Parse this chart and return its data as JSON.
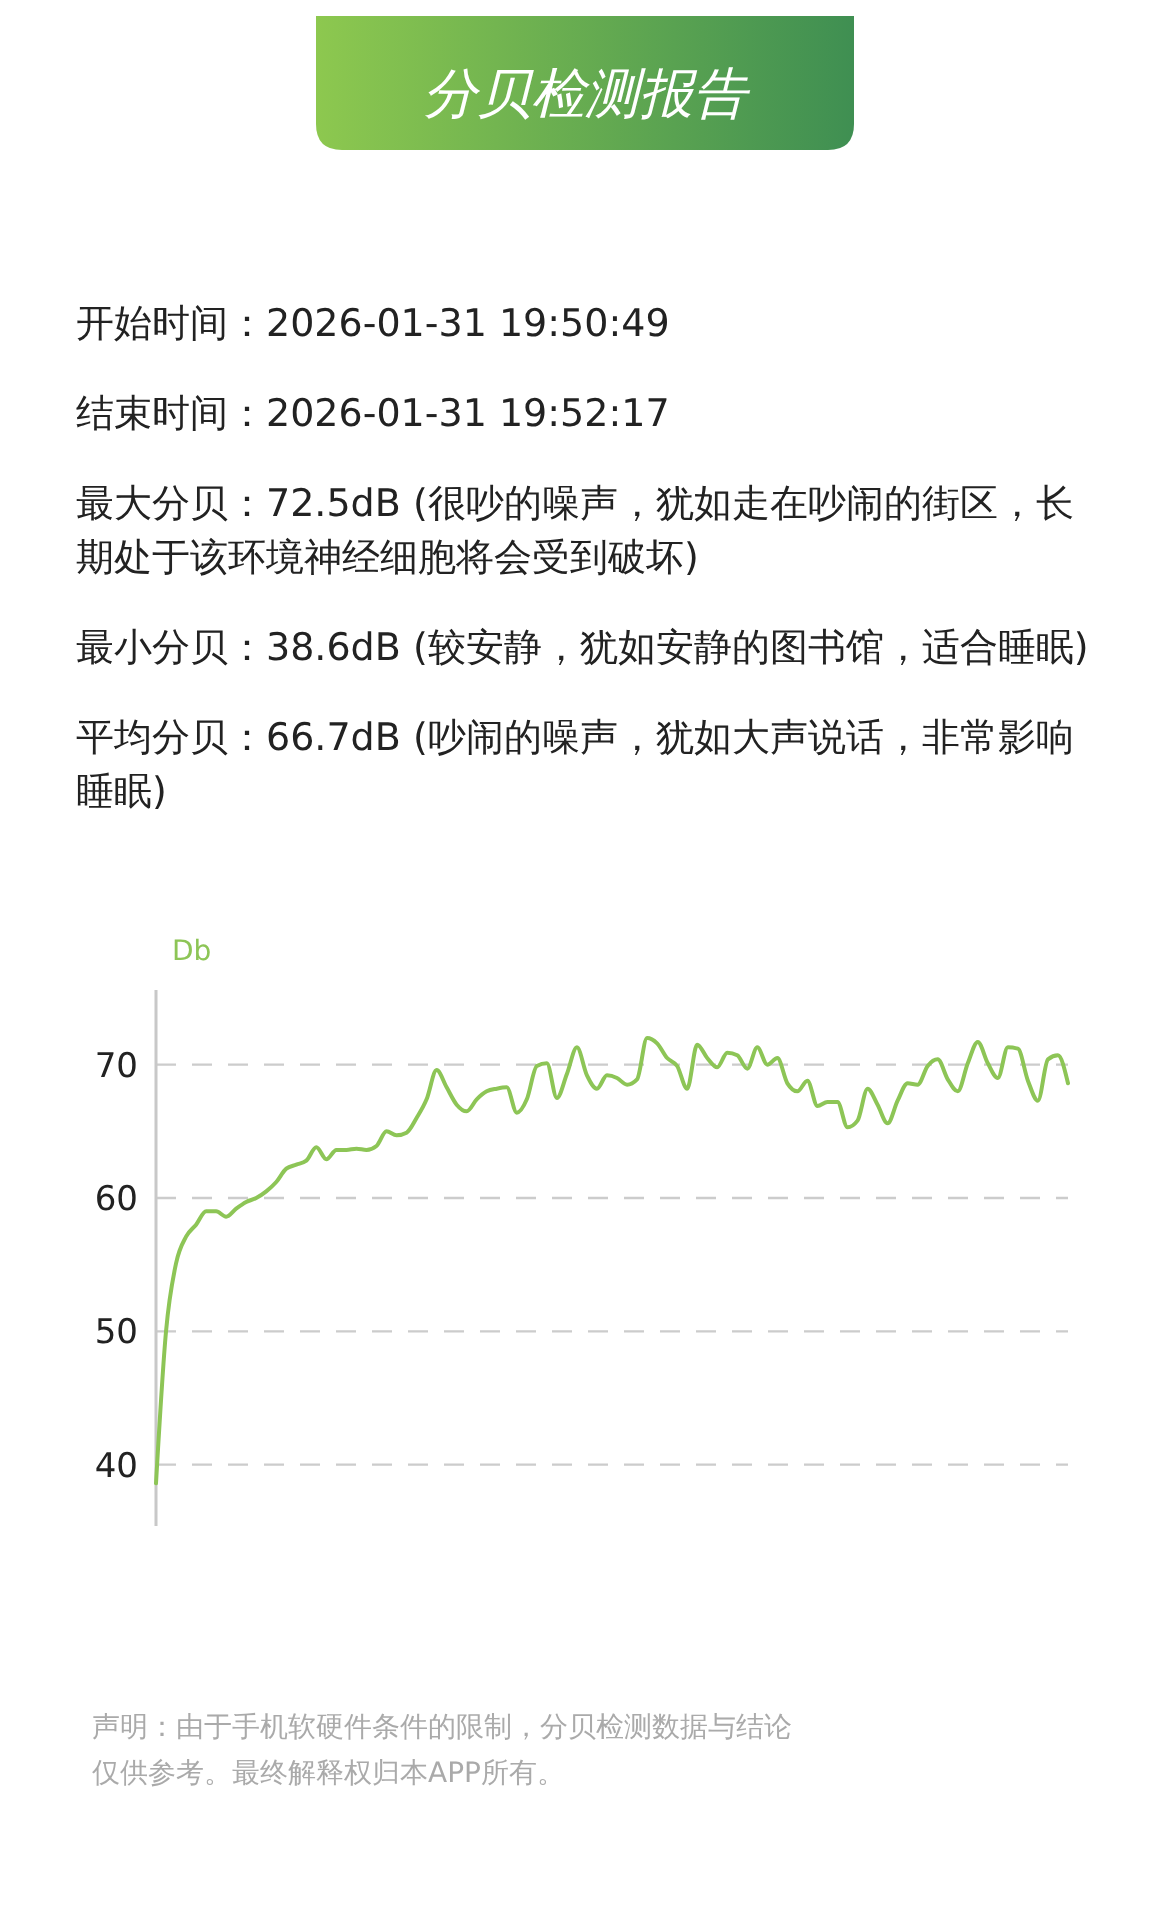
{
  "chart_data": {
    "type": "line",
    "title": "分贝检测报告",
    "ylabel": "Db",
    "annotations": [
      "开始时间：2026-01-31 19:50:49",
      "结束时间：2026-01-31 19:52:17",
      "最大分贝：72.5dB (很吵的噪声，犹如走在吵闹的街区，长期处于该环境神经细胞将会受到破坏)",
      "最小分贝：38.6dB (较安静，犹如安静的图书馆，适合睡眠)",
      "平均分贝：66.7dB (吵闹的噪声，犹如大声说话，非常影响睡眠)",
      "声明：由于手机软硬件条件的限制，分贝检测数据与结论仅供参考。最终解释权归本APP所有。"
    ],
    "categories": [
      null,
      null,
      null,
      null,
      null,
      null,
      null,
      null,
      null,
      null,
      null,
      null,
      null,
      null,
      null,
      null,
      null,
      null,
      null,
      null,
      null,
      null,
      null,
      null,
      null,
      null,
      null,
      null,
      null,
      null,
      null,
      null,
      null,
      null,
      null,
      null,
      null,
      null,
      null,
      null,
      null,
      null,
      null,
      null,
      null,
      null,
      null,
      null,
      null,
      null,
      null,
      null,
      null,
      null,
      null,
      null,
      null,
      null,
      null,
      null,
      null,
      null,
      null,
      null,
      null,
      null,
      null,
      null,
      null,
      null,
      null,
      null,
      null,
      null,
      null,
      null,
      null,
      null,
      null,
      null,
      null,
      null,
      null,
      null,
      null,
      null,
      null,
      null,
      null,
      null,
      null,
      null
    ],
    "series": [
      {
        "color": "#8dc556",
        "values": [
          38.6,
          50,
          55.1,
          57.1,
          58.0,
          59.0,
          59.0,
          58.6,
          59.2,
          59.7,
          60.0,
          60.5,
          61.2,
          62.2,
          62.5,
          62.8,
          63.8,
          62.9,
          63.6,
          63.6,
          63.7,
          63.6,
          63.9,
          65.0,
          64.7,
          64.9,
          66.0,
          67.4,
          69.6,
          68.3,
          67.0,
          66.5,
          67.4,
          68.0,
          68.2,
          68.3,
          66.4,
          67.4,
          69.9,
          70.1,
          67.5,
          69.3,
          71.3,
          69.2,
          68.2,
          69.2,
          69.0,
          68.5,
          68.9,
          72.0,
          71.6,
          70.5,
          69.9,
          68.2,
          71.5,
          70.5,
          69.8,
          70.9,
          70.7,
          69.7,
          71.3,
          70.0,
          70.5,
          68.6,
          68.0,
          68.8,
          66.9,
          67.2,
          67.2,
          65.3,
          65.8,
          68.2,
          67.0,
          65.6,
          67.3,
          68.6,
          68.5,
          69.9,
          70.4,
          68.9,
          68.0,
          70.1,
          71.7,
          70.1,
          69.0,
          71.3,
          71.2,
          68.8,
          67.3,
          70.4,
          70.7,
          68.6
        ]
      }
    ],
    "ylim": [
      35.4,
      75.6
    ],
    "yticks": [
      40,
      50,
      60,
      70
    ],
    "grid": "y",
    "line_style": "solid",
    "marker": "none",
    "tick_labels": "y"
  }
}
